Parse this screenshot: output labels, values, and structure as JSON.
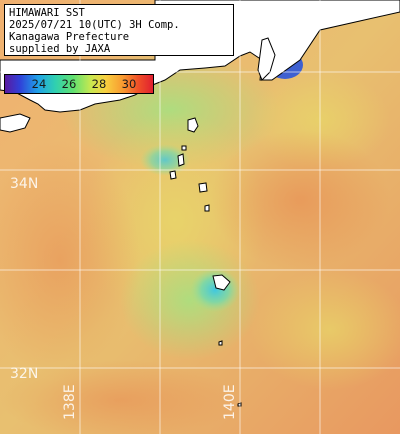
{
  "caption": {
    "line1": "HIMAWARI SST",
    "line2": "2025/07/21 10(UTC) 3H Comp.",
    "line3": "Kanagawa Prefecture",
    "line4": "supplied by JAXA"
  },
  "legend": {
    "labels": [
      "24",
      "26",
      "28",
      "30"
    ]
  },
  "grid_labels": {
    "lat_34": "34N",
    "lat_32": "32N",
    "lon_138": "138E",
    "lon_140": "140E"
  },
  "colors": {
    "warm": "#f0a060",
    "mid": "#c8d870",
    "cool": "#60d0c0",
    "cold": "#2060e0",
    "land": "#ffffff"
  }
}
